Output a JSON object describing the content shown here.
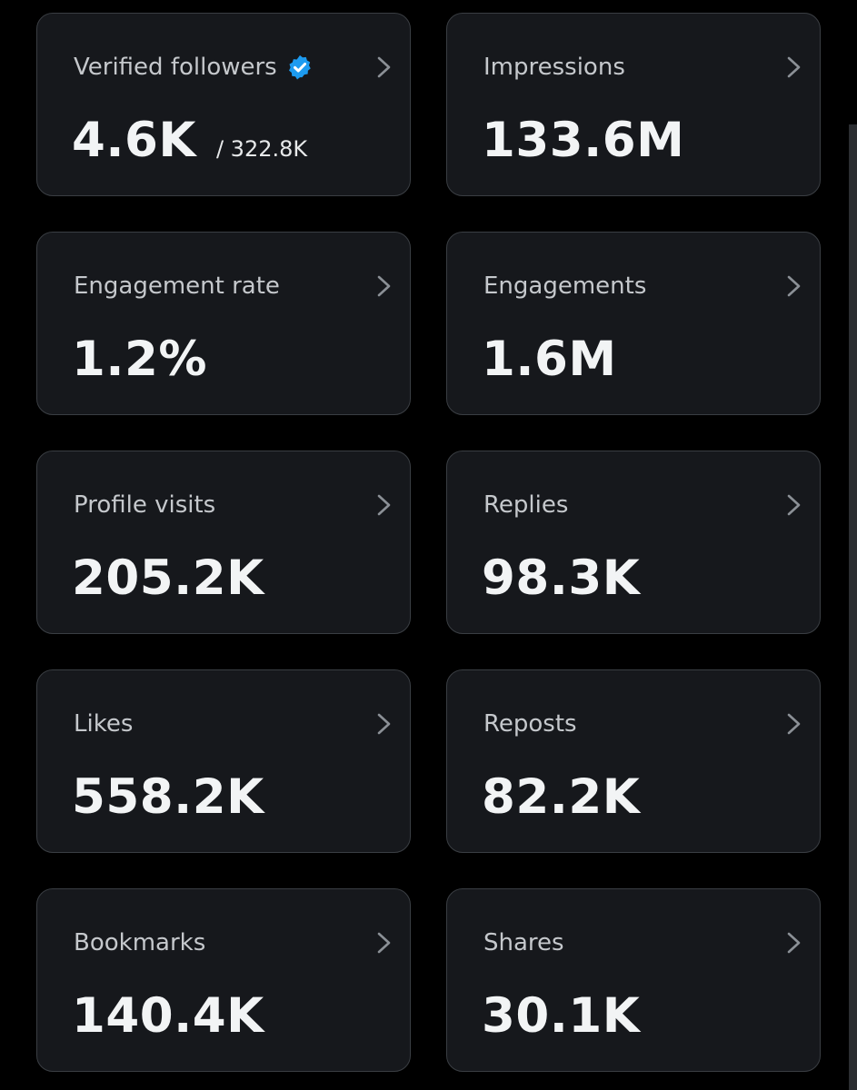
{
  "colors": {
    "background": "#000000",
    "card_background": "#16181c",
    "card_border": "#3a3e43",
    "label": "#c5c8cc",
    "value": "#f2f4f5",
    "verified_badge": "#1d9bf0",
    "chevron": "#8b9096"
  },
  "icons": {
    "verified": "verified-badge-icon",
    "chevron": "chevron-right-icon"
  },
  "metrics": [
    {
      "label": "Verified followers",
      "value": "4.6K",
      "secondary": "/ 322.8K",
      "verified": true
    },
    {
      "label": "Impressions",
      "value": "133.6M"
    },
    {
      "label": "Engagement rate",
      "value": "1.2%"
    },
    {
      "label": "Engagements",
      "value": "1.6M"
    },
    {
      "label": "Profile visits",
      "value": "205.2K"
    },
    {
      "label": "Replies",
      "value": "98.3K"
    },
    {
      "label": "Likes",
      "value": "558.2K"
    },
    {
      "label": "Reposts",
      "value": "82.2K"
    },
    {
      "label": "Bookmarks",
      "value": "140.4K"
    },
    {
      "label": "Shares",
      "value": "30.1K"
    }
  ]
}
